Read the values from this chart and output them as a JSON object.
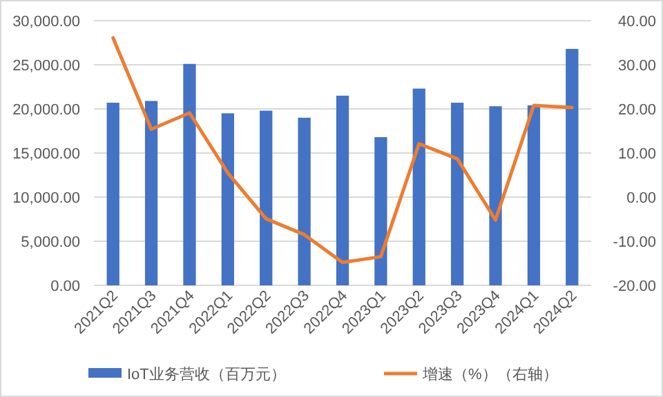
{
  "chart_data": {
    "type": "bar",
    "categories": [
      "2021Q2",
      "2021Q3",
      "2021Q4",
      "2022Q1",
      "2022Q2",
      "2022Q3",
      "2022Q4",
      "2023Q1",
      "2023Q2",
      "2023Q3",
      "2023Q4",
      "2024Q1",
      "2024Q2"
    ],
    "series": [
      {
        "name": "IoT业务营收（百万元）",
        "color": "#4472c4",
        "values": [
          20700,
          20900,
          25100,
          19500,
          19800,
          19000,
          21500,
          16800,
          22300,
          20700,
          20300,
          20400,
          26800
        ]
      },
      {
        "name": "增速（%）（右轴）",
        "type": "line",
        "axis": "y2",
        "color": "#ed7d31",
        "values": [
          36.1,
          15.4,
          19.1,
          5.5,
          -4.9,
          -8.5,
          -14.8,
          -13.5,
          12.1,
          8.7,
          -5.2,
          20.8,
          20.3
        ]
      }
    ],
    "ylim": [
      0,
      30000
    ],
    "yticks": [
      {
        "value": 0,
        "label": "0.00"
      },
      {
        "value": 5000,
        "label": "5,000.00"
      },
      {
        "value": 10000,
        "label": "10,000.00"
      },
      {
        "value": 15000,
        "label": "15,000.00"
      },
      {
        "value": 20000,
        "label": "20,000.00"
      },
      {
        "value": 25000,
        "label": "25,000.00"
      },
      {
        "value": 30000,
        "label": "30,000.00"
      }
    ],
    "y2lim": [
      -20,
      40
    ],
    "y2ticks": [
      {
        "value": -20,
        "label": "-20.00"
      },
      {
        "value": -10,
        "label": "-10.00"
      },
      {
        "value": 0,
        "label": "0.00"
      },
      {
        "value": 10,
        "label": "10.00"
      },
      {
        "value": 20,
        "label": "20.00"
      },
      {
        "value": 30,
        "label": "30.00"
      },
      {
        "value": 40,
        "label": "40.00"
      }
    ],
    "grid": "y",
    "legend": "bottom"
  }
}
